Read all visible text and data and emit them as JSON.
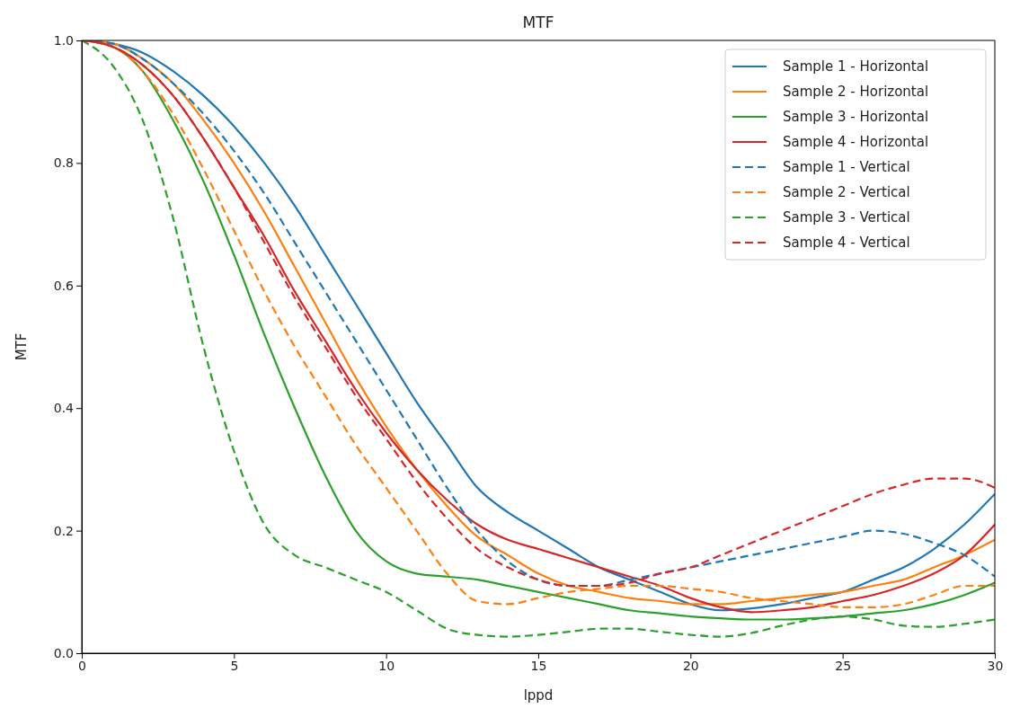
{
  "chart_data": {
    "type": "line",
    "title": "MTF",
    "xlabel": "lppd",
    "ylabel": "MTF",
    "xlim": [
      0,
      30
    ],
    "ylim": [
      0,
      1
    ],
    "xticks": [
      0,
      5,
      10,
      15,
      20,
      25,
      30
    ],
    "yticks": [
      {
        "value": 0,
        "label": "0.0"
      },
      {
        "value": 0.2,
        "label": "0.2"
      },
      {
        "value": 0.4,
        "label": "0.4"
      },
      {
        "value": 0.6,
        "label": "0.6"
      },
      {
        "value": 0.8,
        "label": "0.8"
      },
      {
        "value": 1,
        "label": "1.0"
      }
    ],
    "legend": "top right",
    "marker": "none",
    "x": [
      0,
      1,
      2,
      3,
      4,
      5,
      6,
      7,
      8,
      9,
      10,
      11,
      12,
      13,
      14,
      15,
      16,
      17,
      18,
      19,
      20,
      21,
      22,
      23,
      24,
      25,
      26,
      27,
      28,
      29,
      30
    ],
    "series": [
      {
        "name": "Sample 1 - Horizontal",
        "color": "#1f77b4",
        "line_style": "solid",
        "values": [
          1,
          0.995,
          0.98,
          0.95,
          0.91,
          0.86,
          0.8,
          0.73,
          0.65,
          0.57,
          0.49,
          0.41,
          0.34,
          0.27,
          0.23,
          0.2,
          0.17,
          0.14,
          0.12,
          0.1,
          0.08,
          0.07,
          0.073,
          0.08,
          0.09,
          0.1,
          0.12,
          0.14,
          0.17,
          0.21,
          0.26
        ]
      },
      {
        "name": "Sample 2 - Horizontal",
        "color": "#ff7f0e",
        "line_style": "solid",
        "values": [
          1,
          0.995,
          0.97,
          0.93,
          0.87,
          0.8,
          0.72,
          0.63,
          0.54,
          0.45,
          0.37,
          0.3,
          0.24,
          0.19,
          0.16,
          0.13,
          0.11,
          0.1,
          0.09,
          0.085,
          0.08,
          0.08,
          0.085,
          0.09,
          0.095,
          0.1,
          0.11,
          0.12,
          0.14,
          0.16,
          0.185
        ]
      },
      {
        "name": "Sample 3 - Horizontal",
        "color": "#2ca02c",
        "line_style": "solid",
        "values": [
          1,
          0.99,
          0.95,
          0.87,
          0.77,
          0.65,
          0.52,
          0.4,
          0.29,
          0.2,
          0.15,
          0.13,
          0.125,
          0.12,
          0.11,
          0.1,
          0.09,
          0.08,
          0.07,
          0.065,
          0.06,
          0.057,
          0.055,
          0.055,
          0.057,
          0.06,
          0.065,
          0.07,
          0.08,
          0.095,
          0.115
        ]
      },
      {
        "name": "Sample 4 - Horizontal",
        "color": "#d62728",
        "line_style": "solid",
        "values": [
          1,
          0.99,
          0.96,
          0.91,
          0.84,
          0.76,
          0.68,
          0.59,
          0.51,
          0.43,
          0.36,
          0.3,
          0.25,
          0.21,
          0.185,
          0.17,
          0.155,
          0.14,
          0.125,
          0.11,
          0.09,
          0.075,
          0.067,
          0.07,
          0.075,
          0.085,
          0.095,
          0.11,
          0.13,
          0.16,
          0.21
        ]
      },
      {
        "name": "Sample 1 - Vertical",
        "color": "#1f77b4",
        "line_style": "dashed",
        "values": [
          1,
          0.995,
          0.97,
          0.93,
          0.88,
          0.82,
          0.75,
          0.67,
          0.59,
          0.51,
          0.43,
          0.35,
          0.27,
          0.2,
          0.15,
          0.12,
          0.11,
          0.11,
          0.12,
          0.13,
          0.14,
          0.15,
          0.16,
          0.17,
          0.18,
          0.19,
          0.2,
          0.195,
          0.18,
          0.16,
          0.125
        ]
      },
      {
        "name": "Sample 2 - Vertical",
        "color": "#ff7f0e",
        "line_style": "dashed",
        "values": [
          1,
          0.99,
          0.95,
          0.88,
          0.79,
          0.69,
          0.59,
          0.5,
          0.42,
          0.34,
          0.27,
          0.2,
          0.13,
          0.085,
          0.08,
          0.09,
          0.1,
          0.105,
          0.11,
          0.11,
          0.105,
          0.1,
          0.09,
          0.085,
          0.08,
          0.075,
          0.075,
          0.08,
          0.095,
          0.11,
          0.11
        ]
      },
      {
        "name": "Sample 3 - Vertical",
        "color": "#2ca02c",
        "line_style": "dashed",
        "values": [
          1,
          0.96,
          0.87,
          0.71,
          0.5,
          0.33,
          0.21,
          0.16,
          0.14,
          0.12,
          0.1,
          0.07,
          0.04,
          0.03,
          0.027,
          0.03,
          0.035,
          0.04,
          0.04,
          0.035,
          0.03,
          0.027,
          0.033,
          0.045,
          0.055,
          0.06,
          0.055,
          0.045,
          0.043,
          0.048,
          0.055
        ]
      },
      {
        "name": "Sample 4 - Vertical",
        "color": "#d62728",
        "line_style": "dashed",
        "values": [
          1,
          0.99,
          0.96,
          0.91,
          0.84,
          0.76,
          0.67,
          0.58,
          0.5,
          0.42,
          0.35,
          0.28,
          0.22,
          0.17,
          0.14,
          0.12,
          0.11,
          0.11,
          0.115,
          0.13,
          0.14,
          0.16,
          0.18,
          0.2,
          0.22,
          0.24,
          0.26,
          0.275,
          0.285,
          0.285,
          0.27
        ]
      }
    ]
  }
}
